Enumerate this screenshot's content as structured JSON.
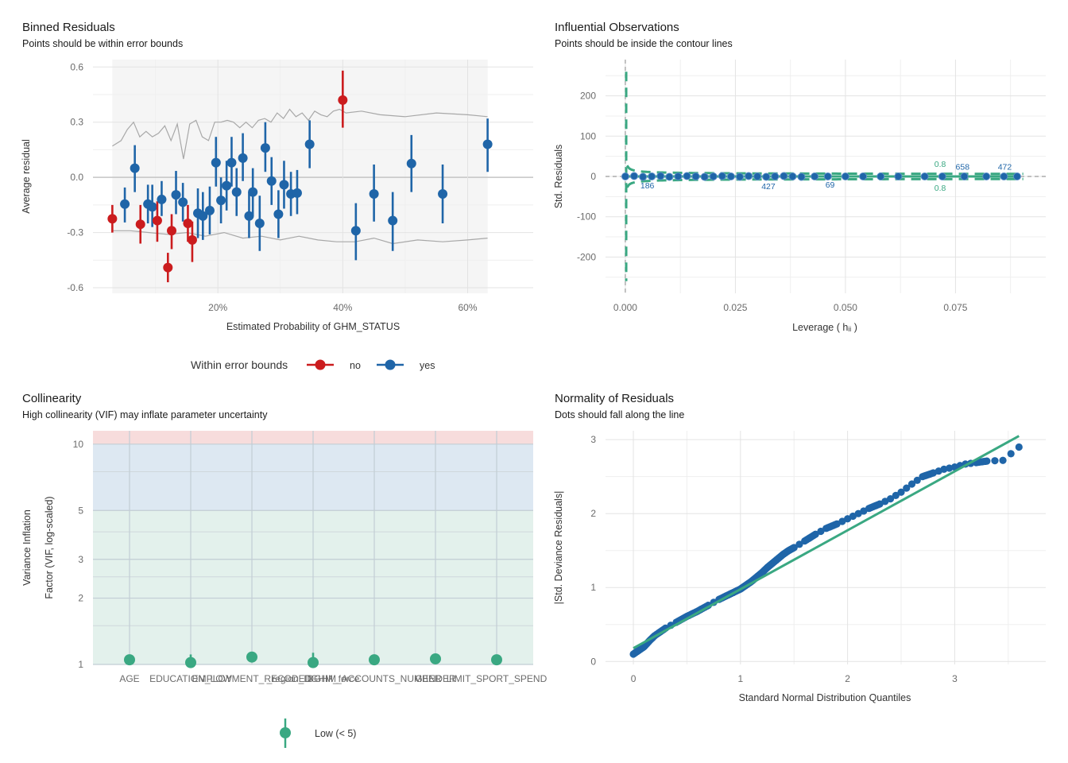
{
  "chart_data": [
    {
      "id": "binned",
      "type": "scatter",
      "title": "Binned Residuals",
      "subtitle": "Points should be within error bounds",
      "xlabel": "Estimated Probability of GHM_STATUS",
      "ylabel": "Average residual",
      "xlim": [
        0.0,
        0.705
      ],
      "ylim": [
        -0.63,
        0.64
      ],
      "x_ticks": [
        0.2,
        0.4,
        0.6
      ],
      "x_tick_labels": [
        "20%",
        "40%",
        "60%"
      ],
      "y_ticks": [
        -0.6,
        -0.3,
        0.0,
        0.3,
        0.6
      ],
      "y_tick_labels": [
        "-0.6",
        "-0.3",
        "0.0",
        "0.3",
        "0.6"
      ],
      "grid": true,
      "shaded_x_range": [
        0.031,
        0.632
      ],
      "legend": {
        "title": "Within error bounds",
        "position": "bottom",
        "items": [
          {
            "label": "no",
            "color": "#cb1c1e"
          },
          {
            "label": "yes",
            "color": "#1f65a8"
          }
        ]
      },
      "upper_bound": {
        "x": [
          0.031,
          0.045,
          0.055,
          0.065,
          0.075,
          0.085,
          0.095,
          0.105,
          0.115,
          0.125,
          0.135,
          0.145,
          0.155,
          0.165,
          0.175,
          0.185,
          0.195,
          0.205,
          0.215,
          0.225,
          0.235,
          0.245,
          0.255,
          0.265,
          0.275,
          0.285,
          0.295,
          0.305,
          0.315,
          0.325,
          0.335,
          0.345,
          0.355,
          0.365,
          0.375,
          0.385,
          0.395,
          0.405,
          0.43,
          0.46,
          0.5,
          0.55,
          0.6,
          0.632
        ],
        "y": [
          0.17,
          0.2,
          0.26,
          0.3,
          0.22,
          0.25,
          0.22,
          0.24,
          0.28,
          0.2,
          0.29,
          0.1,
          0.29,
          0.31,
          0.22,
          0.2,
          0.3,
          0.3,
          0.31,
          0.3,
          0.27,
          0.3,
          0.27,
          0.31,
          0.32,
          0.3,
          0.35,
          0.32,
          0.37,
          0.33,
          0.35,
          0.31,
          0.36,
          0.34,
          0.33,
          0.36,
          0.37,
          0.35,
          0.36,
          0.34,
          0.33,
          0.35,
          0.34,
          0.33
        ]
      },
      "lower_bound": {
        "x": [
          0.031,
          0.06,
          0.09,
          0.12,
          0.15,
          0.18,
          0.21,
          0.24,
          0.27,
          0.3,
          0.33,
          0.36,
          0.39,
          0.42,
          0.45,
          0.48,
          0.52,
          0.56,
          0.6,
          0.632
        ],
        "y": [
          -0.29,
          -0.29,
          -0.3,
          -0.31,
          -0.3,
          -0.32,
          -0.3,
          -0.33,
          -0.32,
          -0.34,
          -0.32,
          -0.34,
          -0.35,
          -0.35,
          -0.33,
          -0.36,
          -0.34,
          -0.35,
          -0.34,
          -0.33
        ]
      },
      "points": [
        {
          "x": 0.031,
          "y": -0.225,
          "lo": -0.3,
          "hi": -0.15,
          "ok": "no"
        },
        {
          "x": 0.051,
          "y": -0.145,
          "lo": -0.245,
          "hi": -0.055,
          "ok": "yes"
        },
        {
          "x": 0.067,
          "y": 0.05,
          "lo": -0.08,
          "hi": 0.175,
          "ok": "yes"
        },
        {
          "x": 0.076,
          "y": -0.255,
          "lo": -0.36,
          "hi": -0.15,
          "ok": "no"
        },
        {
          "x": 0.088,
          "y": -0.145,
          "lo": -0.25,
          "hi": -0.04,
          "ok": "yes"
        },
        {
          "x": 0.095,
          "y": -0.16,
          "lo": -0.27,
          "hi": -0.04,
          "ok": "yes"
        },
        {
          "x": 0.103,
          "y": -0.235,
          "lo": -0.35,
          "hi": -0.13,
          "ok": "no"
        },
        {
          "x": 0.11,
          "y": -0.12,
          "lo": -0.21,
          "hi": -0.02,
          "ok": "yes"
        },
        {
          "x": 0.12,
          "y": -0.49,
          "lo": -0.57,
          "hi": -0.41,
          "ok": "no"
        },
        {
          "x": 0.126,
          "y": -0.29,
          "lo": -0.39,
          "hi": -0.2,
          "ok": "no"
        },
        {
          "x": 0.133,
          "y": -0.095,
          "lo": -0.2,
          "hi": 0.035,
          "ok": "yes"
        },
        {
          "x": 0.144,
          "y": -0.135,
          "lo": -0.24,
          "hi": -0.03,
          "ok": "yes"
        },
        {
          "x": 0.152,
          "y": -0.25,
          "lo": -0.35,
          "hi": -0.15,
          "ok": "no"
        },
        {
          "x": 0.159,
          "y": -0.34,
          "lo": -0.46,
          "hi": -0.24,
          "ok": "no"
        },
        {
          "x": 0.168,
          "y": -0.195,
          "lo": -0.33,
          "hi": -0.06,
          "ok": "yes"
        },
        {
          "x": 0.176,
          "y": -0.21,
          "lo": -0.34,
          "hi": -0.08,
          "ok": "yes"
        },
        {
          "x": 0.187,
          "y": -0.18,
          "lo": -0.31,
          "hi": -0.05,
          "ok": "yes"
        },
        {
          "x": 0.197,
          "y": 0.08,
          "lo": -0.05,
          "hi": 0.22,
          "ok": "yes"
        },
        {
          "x": 0.205,
          "y": -0.125,
          "lo": -0.25,
          "hi": 0.0,
          "ok": "yes"
        },
        {
          "x": 0.214,
          "y": -0.045,
          "lo": -0.18,
          "hi": 0.09,
          "ok": "yes"
        },
        {
          "x": 0.222,
          "y": 0.08,
          "lo": -0.05,
          "hi": 0.22,
          "ok": "yes"
        },
        {
          "x": 0.23,
          "y": -0.08,
          "lo": -0.21,
          "hi": 0.05,
          "ok": "yes"
        },
        {
          "x": 0.24,
          "y": 0.105,
          "lo": -0.02,
          "hi": 0.24,
          "ok": "yes"
        },
        {
          "x": 0.25,
          "y": -0.21,
          "lo": -0.33,
          "hi": -0.08,
          "ok": "yes"
        },
        {
          "x": 0.256,
          "y": -0.08,
          "lo": -0.21,
          "hi": 0.05,
          "ok": "yes"
        },
        {
          "x": 0.267,
          "y": -0.25,
          "lo": -0.4,
          "hi": -0.1,
          "ok": "yes"
        },
        {
          "x": 0.276,
          "y": 0.16,
          "lo": 0.03,
          "hi": 0.3,
          "ok": "yes"
        },
        {
          "x": 0.286,
          "y": -0.02,
          "lo": -0.15,
          "hi": 0.11,
          "ok": "yes"
        },
        {
          "x": 0.297,
          "y": -0.2,
          "lo": -0.33,
          "hi": -0.07,
          "ok": "yes"
        },
        {
          "x": 0.306,
          "y": -0.04,
          "lo": -0.17,
          "hi": 0.09,
          "ok": "yes"
        },
        {
          "x": 0.317,
          "y": -0.09,
          "lo": -0.21,
          "hi": 0.03,
          "ok": "yes"
        },
        {
          "x": 0.327,
          "y": -0.085,
          "lo": -0.2,
          "hi": 0.04,
          "ok": "yes"
        },
        {
          "x": 0.347,
          "y": 0.18,
          "lo": 0.05,
          "hi": 0.31,
          "ok": "yes"
        },
        {
          "x": 0.4,
          "y": 0.42,
          "lo": 0.27,
          "hi": 0.58,
          "ok": "no"
        },
        {
          "x": 0.421,
          "y": -0.29,
          "lo": -0.45,
          "hi": -0.14,
          "ok": "yes"
        },
        {
          "x": 0.45,
          "y": -0.09,
          "lo": -0.24,
          "hi": 0.07,
          "ok": "yes"
        },
        {
          "x": 0.48,
          "y": -0.235,
          "lo": -0.4,
          "hi": -0.08,
          "ok": "yes"
        },
        {
          "x": 0.51,
          "y": 0.075,
          "lo": -0.08,
          "hi": 0.23,
          "ok": "yes"
        },
        {
          "x": 0.56,
          "y": -0.09,
          "lo": -0.25,
          "hi": 0.07,
          "ok": "yes"
        },
        {
          "x": 0.632,
          "y": 0.18,
          "lo": 0.03,
          "hi": 0.32,
          "ok": "yes"
        }
      ]
    },
    {
      "id": "influence",
      "type": "scatter",
      "title": "Influential Observations",
      "subtitle": "Points should be inside the contour lines",
      "xlabel": "Leverage ( hᵢᵢ )",
      "ylabel": "Std. Residuals",
      "xlim": [
        -0.0045,
        0.0955
      ],
      "ylim": [
        -290,
        290
      ],
      "x_ticks": [
        0.0,
        0.025,
        0.05,
        0.075
      ],
      "x_tick_labels": [
        "0.000",
        "0.025",
        "0.050",
        "0.075"
      ],
      "y_ticks": [
        -200,
        -100,
        0,
        100,
        200
      ],
      "y_tick_labels": [
        "-200",
        "-100",
        "0",
        "100",
        "200"
      ],
      "grid": true,
      "contour_levels": [
        "0.8",
        "0.8"
      ],
      "point_labels": [
        {
          "text": "186",
          "x": 0.005,
          "y": -22
        },
        {
          "text": "427",
          "x": 0.0325,
          "y": -24
        },
        {
          "text": "69",
          "x": 0.0465,
          "y": -20
        },
        {
          "text": "658",
          "x": 0.0766,
          "y": 25
        },
        {
          "text": "472",
          "x": 0.0862,
          "y": 25
        }
      ],
      "points": {
        "x": [
          0.0,
          0.002,
          0.004,
          0.006,
          0.008,
          0.01,
          0.012,
          0.014,
          0.016,
          0.018,
          0.02,
          0.022,
          0.024,
          0.026,
          0.028,
          0.03,
          0.032,
          0.034,
          0.036,
          0.038,
          0.04,
          0.043,
          0.046,
          0.05,
          0.054,
          0.058,
          0.062,
          0.068,
          0.072,
          0.077,
          0.082,
          0.086,
          0.089
        ],
        "y": [
          0,
          1,
          -1,
          0,
          1,
          -1,
          0,
          1,
          0,
          -1,
          0,
          1,
          0,
          -1,
          1,
          0,
          -1,
          0,
          1,
          0,
          -1,
          0,
          0,
          0,
          0,
          0,
          0,
          0,
          0,
          0,
          0,
          0,
          0
        ]
      }
    },
    {
      "id": "collinearity",
      "type": "scatter",
      "title": "Collinearity",
      "subtitle": "High collinearity (VIF) may inflate parameter uncertainty",
      "ylabel_lines": [
        "Variance Inflation",
        "Factor (VIF, log-scaled)"
      ],
      "y_scale": "log",
      "ylim": [
        1,
        11.5
      ],
      "y_ticks": [
        1,
        2,
        3,
        5,
        10
      ],
      "y_tick_labels": [
        "1",
        "2",
        "3",
        "5",
        "10"
      ],
      "bands": [
        {
          "from": 1,
          "to": 5,
          "color": "#e3f1ec"
        },
        {
          "from": 5,
          "to": 10,
          "color": "#dde8f2"
        },
        {
          "from": 10,
          "to": 11.5,
          "color": "#f7dcdc"
        }
      ],
      "categories": [
        "AGE",
        "EDUCATION_LOW",
        "EMPLOYMENT_RECODED",
        "_region_DGHM_force",
        "DGHM_ACCOUNTS_NUMBER",
        "GENDER",
        "LIMIT_SPORT_SPEND"
      ],
      "values": [
        1.05,
        1.02,
        1.08,
        1.02,
        1.05,
        1.06,
        1.05
      ],
      "ci_hi": [
        1.08,
        1.11,
        1.08,
        1.13,
        1.08,
        1.08,
        1.08
      ],
      "legend": {
        "position": "bottom",
        "items": [
          {
            "label": "Low (< 5)",
            "color": "#3aa882"
          }
        ]
      }
    },
    {
      "id": "normality",
      "type": "scatter",
      "title": "Normality of Residuals",
      "subtitle": "Dots should fall along the line",
      "xlabel": "Standard Normal Distribution Quantiles",
      "ylabel": "|Std. Deviance Residuals|",
      "xlim": [
        -0.26,
        3.85
      ],
      "ylim": [
        -0.04,
        3.12
      ],
      "x_ticks": [
        0,
        1,
        2,
        3
      ],
      "x_tick_labels": [
        "0",
        "1",
        "2",
        "3"
      ],
      "y_ticks": [
        0,
        1,
        2,
        3
      ],
      "y_tick_labels": [
        "0",
        "1",
        "2",
        "3"
      ],
      "grid": true,
      "reference_line": {
        "x": [
          0.0,
          3.6
        ],
        "y": [
          0.18,
          3.05
        ]
      },
      "points": {
        "x": [
          0.0,
          0.05,
          0.1,
          0.15,
          0.2,
          0.3,
          0.4,
          0.5,
          0.6,
          0.7,
          0.8,
          0.9,
          1.0,
          1.05,
          1.1,
          1.15,
          1.2,
          1.25,
          1.3,
          1.35,
          1.4,
          1.45,
          1.5,
          1.6,
          1.7,
          1.8,
          1.9,
          2.0,
          2.1,
          2.2,
          2.3,
          2.4,
          2.5,
          2.6,
          2.7,
          2.8,
          2.9,
          3.0,
          3.1,
          3.2,
          3.3,
          3.45,
          3.6
        ],
        "y": [
          0.1,
          0.15,
          0.2,
          0.28,
          0.35,
          0.45,
          0.53,
          0.61,
          0.68,
          0.76,
          0.84,
          0.91,
          0.98,
          1.03,
          1.08,
          1.14,
          1.2,
          1.27,
          1.33,
          1.39,
          1.45,
          1.5,
          1.54,
          1.63,
          1.72,
          1.8,
          1.86,
          1.93,
          2.0,
          2.07,
          2.13,
          2.2,
          2.29,
          2.4,
          2.5,
          2.55,
          2.6,
          2.63,
          2.67,
          2.69,
          2.71,
          2.72,
          2.9
        ]
      }
    }
  ]
}
